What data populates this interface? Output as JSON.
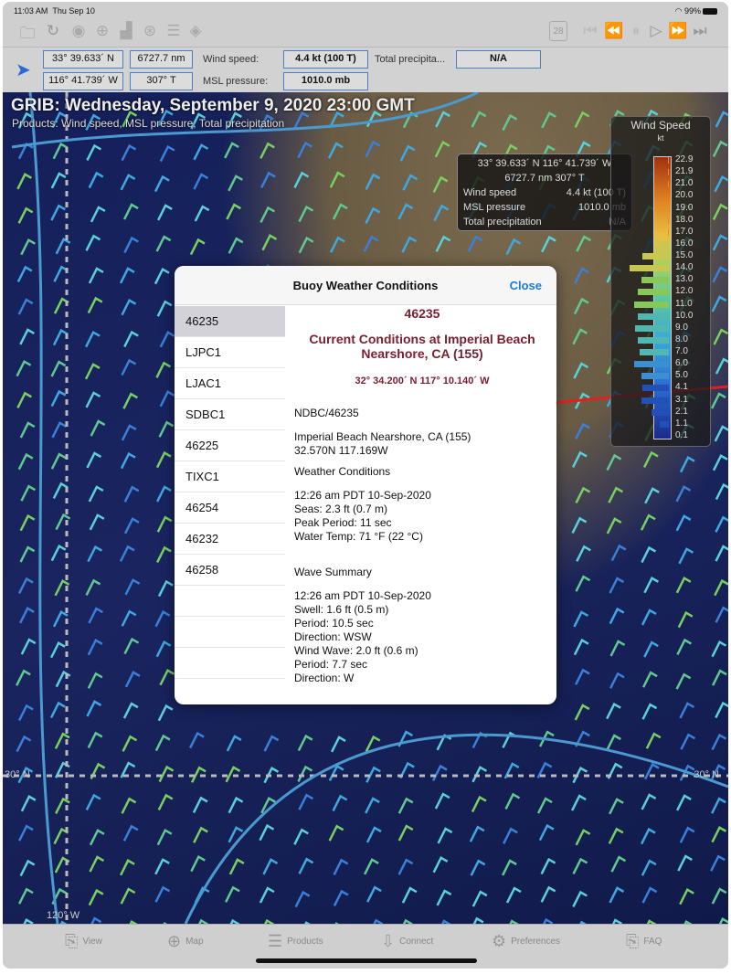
{
  "status": {
    "time": "11:03 AM",
    "date": "Thu Sep 10",
    "battery": "99%"
  },
  "toolbar": {
    "left_icons": [
      "folder-icon",
      "refresh-icon",
      "eye-icon",
      "zoom-in-icon",
      "chart-icon",
      "globe-icon",
      "list-icon",
      "layers-icon"
    ],
    "calendar_day": "28",
    "right_icons": [
      "skip-start-icon",
      "rewind-icon",
      "pause-icon",
      "play-icon",
      "fast-forward-icon",
      "skip-end-icon"
    ]
  },
  "infobar": {
    "lat": "33° 39.633´ N",
    "lon": "116° 41.739´ W",
    "distance": "6727.7 nm",
    "bearing": "307° T",
    "wind_label": "Wind speed:",
    "wind_value": "4.4 kt  (100 T)",
    "pressure_label": "MSL pressure:",
    "pressure_value": "1010.0 mb",
    "precip_label": "Total precipita...",
    "precip_value": "N/A"
  },
  "map": {
    "title": "GRIB: Wednesday, September 9, 2020 23:00 GMT",
    "subtitle": "Products: Wind speed, MSL pressure, Total precipitation",
    "lat_label_left": "30° N",
    "lat_label_right": "30° N",
    "lon_label": "120° W"
  },
  "popup": {
    "coords": "33° 39.633´ N   116° 41.739´ W",
    "dist": "6727.7 nm   307° T",
    "rows": [
      {
        "k": "Wind speed",
        "v": "4.4 kt  (100 T)"
      },
      {
        "k": "MSL pressure",
        "v": "1010.0 mb"
      },
      {
        "k": "Total precipitation",
        "v": "N/A"
      }
    ]
  },
  "legend": {
    "title": "Wind Speed",
    "unit": "kt",
    "ticks": [
      "22.9",
      "21.9",
      "21.0",
      "20.0",
      "19.0",
      "18.0",
      "17.0",
      "16.0",
      "15.0",
      "14.0",
      "13.0",
      "12.0",
      "11.0",
      "10.0",
      "9.0",
      "8.0",
      "7.0",
      "6.0",
      "5.0",
      "4.1",
      "3.1",
      "2.1",
      "1.1",
      "0.1"
    ],
    "histogram": [
      0.02,
      0.03,
      0.03,
      0,
      0.03,
      0.03,
      0.03,
      0.25,
      0.9,
      1.35,
      0.95,
      1.05,
      1.2,
      1.05,
      1.15,
      1.05,
      1.0,
      1.2,
      0.95,
      0.9,
      0.95,
      0.6,
      0.3,
      0
    ]
  },
  "dialog": {
    "title": "Buoy Weather Conditions",
    "close": "Close",
    "stations": [
      "46235",
      "LJPC1",
      "LJAC1",
      "SDBC1",
      "46225",
      "TIXC1",
      "46254",
      "46232",
      "46258",
      "",
      "",
      ""
    ],
    "selected": "46235",
    "station_id": "46235",
    "heading": "Current Conditions at Imperial Beach Nearshore, CA (155)",
    "coords": "32° 34.200´ N   117° 10.140´ W",
    "source": "NDBC/46235",
    "location": [
      "Imperial Beach Nearshore, CA (155)",
      "32.570N 117.169W"
    ],
    "weather_title": "Weather Conditions",
    "weather": [
      "12:26 am PDT 10-Sep-2020",
      "Seas: 2.3 ft (0.7 m)",
      "Peak Period: 11 sec",
      "Water Temp: 71 °F (22 °C)"
    ],
    "wave_title": "Wave Summary",
    "wave": [
      "12:26 am PDT 10-Sep-2020",
      "Swell: 1.6 ft (0.5 m)",
      "Period: 10.5 sec",
      "Direction: WSW",
      "Wind Wave: 2.0 ft (0.6 m)",
      "Period: 7.7 sec",
      "Direction: W"
    ]
  },
  "tabs": [
    {
      "label": "View",
      "icon": "view-icon"
    },
    {
      "label": "Map",
      "icon": "globe-icon"
    },
    {
      "label": "Products",
      "icon": "list-icon"
    },
    {
      "label": "Connect",
      "icon": "download-icon"
    },
    {
      "label": "Preferences",
      "icon": "gear-icon"
    },
    {
      "label": "FAQ",
      "icon": "faq-icon"
    }
  ]
}
